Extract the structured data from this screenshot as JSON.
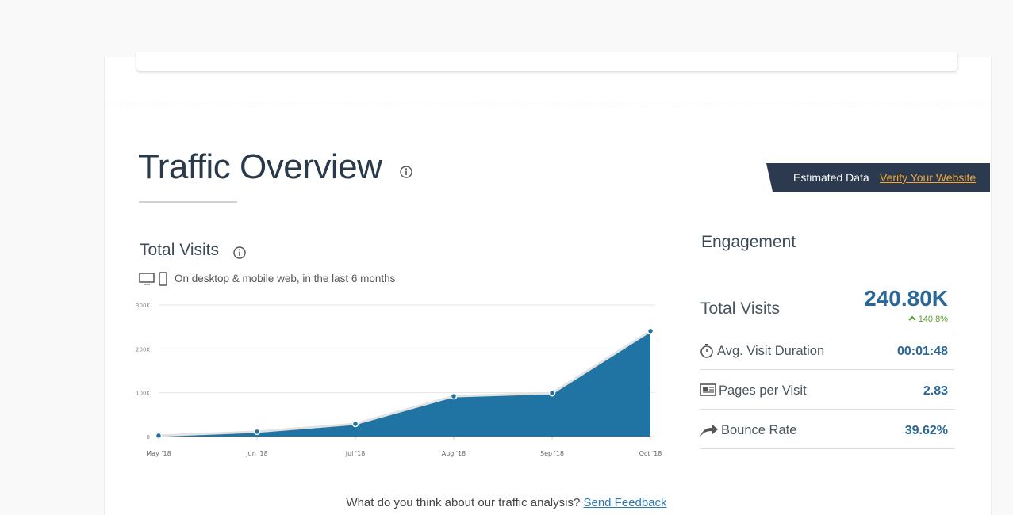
{
  "header": {
    "title": "Traffic Overview",
    "estimated": "Estimated Data",
    "verify_link": "Verify Your Website"
  },
  "chart_data": {
    "type": "area",
    "title": "Total Visits",
    "subtitle": "On desktop & mobile web, in the last 6 months",
    "categories": [
      "May '18",
      "Jun '18",
      "Jul '18",
      "Aug '18",
      "Sep '18",
      "Oct '18"
    ],
    "values": [
      2000,
      11000,
      29000,
      92000,
      99000,
      240800
    ],
    "color": "#1f74a3",
    "line_color": "#e2e2e2",
    "ylim": [
      0,
      300000
    ],
    "yticks": [
      0,
      {
        "value": 100000,
        "label": "100K"
      },
      {
        "value": 200000,
        "label": "200K"
      },
      {
        "value": 300000,
        "label": "300K"
      }
    ],
    "grid": true
  },
  "engagement": {
    "title": "Engagement",
    "total_visits": {
      "label": "Total Visits",
      "value": "240.80K",
      "change": "140.8%"
    },
    "metrics": [
      {
        "label": "Avg. Visit Duration",
        "value": "00:01:48"
      },
      {
        "label": "Pages per Visit",
        "value": "2.83"
      },
      {
        "label": "Bounce Rate",
        "value": "39.62%"
      }
    ]
  },
  "footer": {
    "question": "What do you think about our traffic analysis?",
    "link": "Send Feedback"
  }
}
